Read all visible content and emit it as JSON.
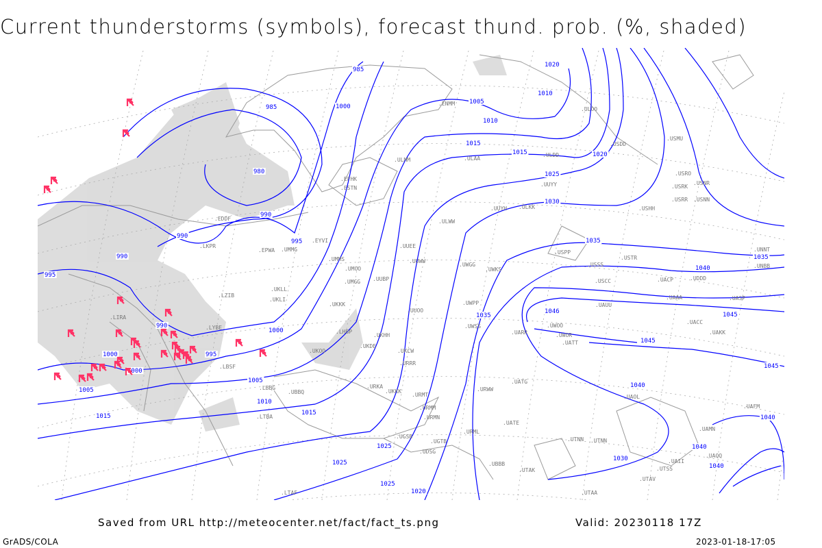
{
  "title": "Current thunderstorms (symbols), forecast thund. prob. (%, shaded)",
  "footer": {
    "saved_from": "Saved from URL http://meteocenter.net/fact/fact_ts.png",
    "valid": "Valid: 20230118 17Z",
    "software": "GrADS/COLA",
    "timestamp": "2023-01-18-17:05"
  },
  "colors": {
    "isobar": "#0000ff",
    "coastline": "#999999",
    "thunderstorm_symbol": "#ff3366",
    "shading": "#d8d8d8"
  },
  "isobar_labels": [
    "985",
    "985",
    "980",
    "990",
    "990",
    "990",
    "995",
    "995",
    "990",
    "1000",
    "1000",
    "1000",
    "1005",
    "1005",
    "1010",
    "1010",
    "1010",
    "1015",
    "1015",
    "1015",
    "1020",
    "1020",
    "1025",
    "1025",
    "1025",
    "1030",
    "1030",
    "1035",
    "1035",
    "1035",
    "1040",
    "1040",
    "1040",
    "1045",
    "1045",
    "1046",
    "1045",
    "1040",
    "1015",
    "1040",
    "1025",
    "1020",
    "1005",
    "1000",
    "995"
  ],
  "station_labels": [
    "ENMM",
    "ULOO",
    "ULAA",
    "ULMM",
    "EFHK",
    "ESTN",
    "EDDF",
    "LKPR",
    "EPWA",
    "UMMG",
    "EYVI",
    "UKLL",
    "UKLI",
    "UKKK",
    "LZIB",
    "LHBP",
    "LIRA",
    "LYBE",
    "LBSF",
    "LBBG",
    "LTBA",
    "UKOO",
    "UKHH",
    "UKDE",
    "UUEE",
    "UUWW",
    "UUOO",
    "UUBP",
    "UMMS",
    "UMGG",
    "UMOO",
    "ULWW",
    "UWGG",
    "UWKS",
    "UWPP",
    "UWSS",
    "URWW",
    "URRR",
    "UKCW",
    "URKA",
    "UKKK",
    "URMT",
    "URMM",
    "URMN",
    "URML",
    "UGSB",
    "UDSG",
    "UGTB",
    "UBBB",
    "UTAK",
    "UTAV",
    "UTSS",
    "UTNN",
    "UAOL",
    "UATG",
    "UATE",
    "UARR",
    "UWOO",
    "UWOR",
    "UATT",
    "UAUU",
    "USPP",
    "USSS",
    "USCC",
    "USTR",
    "USHH",
    "USRR",
    "USRK",
    "USRO",
    "USNR",
    "USNN",
    "USMU",
    "USDD",
    "ULDD",
    "UUYY",
    "UUYH",
    "ULKK",
    "UACC",
    "UAKK",
    "UACP",
    "UAAA",
    "UASP",
    "UNNT",
    "UNBB",
    "UDDD",
    "UBBQ",
    "UAFM",
    "UTNN",
    "UTAA",
    "LTAF",
    "UAII",
    "UAQQ",
    "UAMN"
  ]
}
